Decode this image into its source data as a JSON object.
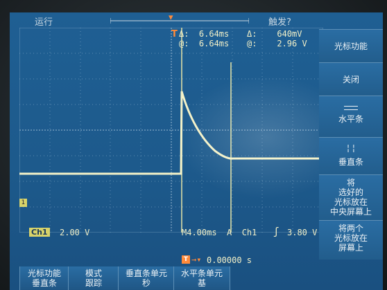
{
  "status": {
    "run_state": "运行",
    "trigger_query": "触发?"
  },
  "cursor_readout": {
    "delta_time_label": "Δ:",
    "delta_time": "6.64ms",
    "at_time_label": "@:",
    "at_time": "6.64ms",
    "delta_volt_label": "Δ:",
    "delta_volt": "640mV",
    "at_volt_label": "@:",
    "at_volt": "2.96 V"
  },
  "channel": {
    "badge": "Ch1",
    "scale": "2.00 V"
  },
  "timebase": {
    "text": "M4.00ms  A  Ch1",
    "level": "3.80 V",
    "trigger_pos": "0.00000 s"
  },
  "side_menu": {
    "title": "光标功能",
    "off": "关闭",
    "horizontal_bars": "水平条",
    "vertical_bars": "垂直条",
    "center_line1": "将",
    "center_line2": "选好的",
    "center_line3": "光标放在",
    "center_line4": "中央屏幕上",
    "screen_line1": "将两个",
    "screen_line2": "光标放在",
    "screen_line3": "屏幕上"
  },
  "bottom_menu": {
    "cursor_fn_line1": "光标功能",
    "cursor_fn_line2": "垂直条",
    "mode_line1": "模式",
    "mode_line2": "跟踪",
    "vunit_line1": "垂直条单元",
    "vunit_line2": "秒",
    "hunit_line1": "水平条单元",
    "hunit_line2": "基"
  },
  "colors": {
    "trace": "#f4f2c8",
    "cursor": "#e8e6a8",
    "trigger": "#ff8a3a",
    "screen_bg": "#1f5f93"
  },
  "icons": [
    "trigger-marker-icon",
    "channel-ground-marker-icon",
    "trigger-level-arrow-icon",
    "rising-edge-icon",
    "horizontal-bars-icon",
    "vertical-bars-icon"
  ]
}
